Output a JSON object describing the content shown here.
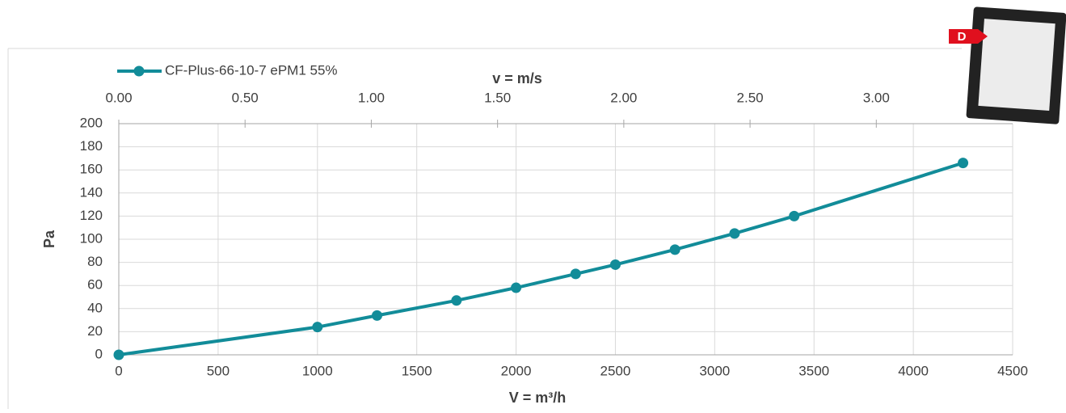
{
  "chart_data": {
    "type": "line",
    "xlabel": "V = m³/h",
    "ylabel": "Pa",
    "x2label": "v = m/s",
    "x": [
      0,
      1000,
      1300,
      1700,
      2000,
      2300,
      2500,
      2800,
      3100,
      3400,
      4250
    ],
    "series": [
      {
        "name": "CF-Plus-66-10-7 ePM1 55%",
        "color": "#128c99",
        "values": [
          0,
          24,
          34,
          47,
          58,
          70,
          78,
          91,
          105,
          120,
          166
        ]
      }
    ],
    "xlim": [
      0,
      4500
    ],
    "xticks": [
      0,
      500,
      1000,
      1500,
      2000,
      2500,
      3000,
      3500,
      4000,
      4500
    ],
    "ylim": [
      0,
      200
    ],
    "yticks": [
      0,
      20,
      40,
      60,
      80,
      100,
      120,
      140,
      160,
      180,
      200
    ],
    "x2lim": [
      0,
      3.54
    ],
    "x2ticks": [
      {
        "value": 0,
        "label": "0.00"
      },
      {
        "value": 0.5,
        "label": "0.50"
      },
      {
        "value": 1,
        "label": "1.00"
      },
      {
        "value": 1.5,
        "label": "1.50"
      },
      {
        "value": 2,
        "label": "2.00"
      },
      {
        "value": 2.5,
        "label": "2.50"
      },
      {
        "value": 3,
        "label": "3.00"
      }
    ],
    "grid": true
  },
  "product_image": {
    "label": "D"
  }
}
